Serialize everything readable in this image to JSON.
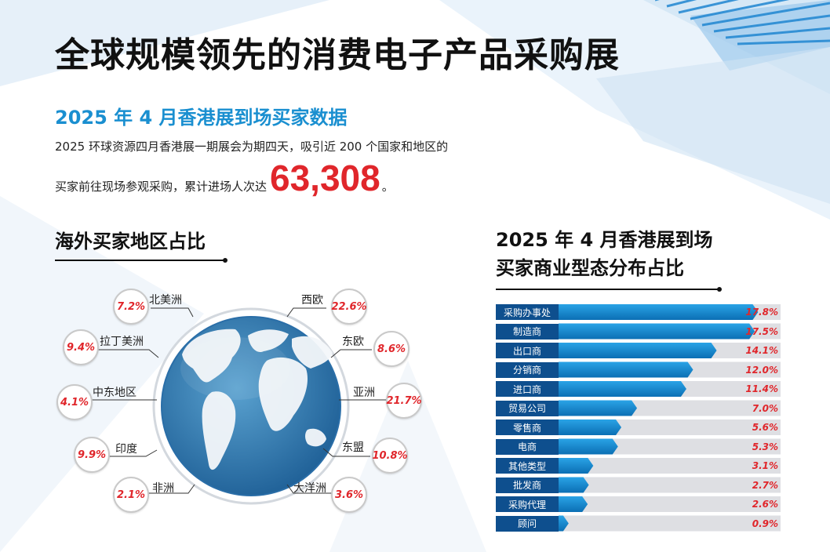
{
  "header": {
    "title": "全球规模领先的消费电子产品采购展"
  },
  "intro": {
    "subtitle": "2025 年 4 月香港展到场买家数据",
    "line1": "2025 环球资源四月香港展一期展会为期四天，吸引近 200 个国家和地区的",
    "line2_prefix": "买家前往现场参观采购，累计进场人次达",
    "visitor_count": "63,308",
    "line2_suffix": "。"
  },
  "colors": {
    "accent_blue": "#1a8fd0",
    "highlight_red": "#e0262b",
    "label_navy": "#0e4f8e",
    "bar_blue": "#1b8fd2",
    "track_grey": "#dedfe3"
  },
  "chart_data": [
    {
      "type": "pie",
      "title": "海外买家地区占比",
      "categories": [
        "北美洲",
        "拉丁美洲",
        "中东地区",
        "印度",
        "非洲",
        "西欧",
        "东欧",
        "亚洲",
        "东盟",
        "大洋洲"
      ],
      "values": [
        7.2,
        9.4,
        4.1,
        9.9,
        2.1,
        22.6,
        8.6,
        21.7,
        10.8,
        3.6
      ],
      "value_labels": [
        "7.2%",
        "9.4%",
        "4.1%",
        "9.9%",
        "2.1%",
        "22.6%",
        "8.6%",
        "21.7%",
        "10.8%",
        "3.6%"
      ],
      "unit": "%"
    },
    {
      "type": "bar",
      "orientation": "horizontal",
      "title_line1": "2025 年 4 月香港展到场",
      "title_line2": "买家商业型态分布占比",
      "categories": [
        "采购办事处",
        "制造商",
        "出口商",
        "分销商",
        "进口商",
        "贸易公司",
        "零售商",
        "电商",
        "其他类型",
        "批发商",
        "采购代理",
        "顾问"
      ],
      "values": [
        17.8,
        17.5,
        14.1,
        12.0,
        11.4,
        7.0,
        5.6,
        5.3,
        3.1,
        2.7,
        2.6,
        0.9
      ],
      "value_labels": [
        "17.8%",
        "17.5%",
        "14.1%",
        "12.0%",
        "11.4%",
        "7.0%",
        "5.6%",
        "5.3%",
        "3.1%",
        "2.7%",
        "2.6%",
        "0.9%"
      ],
      "xlim": [
        0,
        20
      ],
      "unit": "%"
    }
  ]
}
